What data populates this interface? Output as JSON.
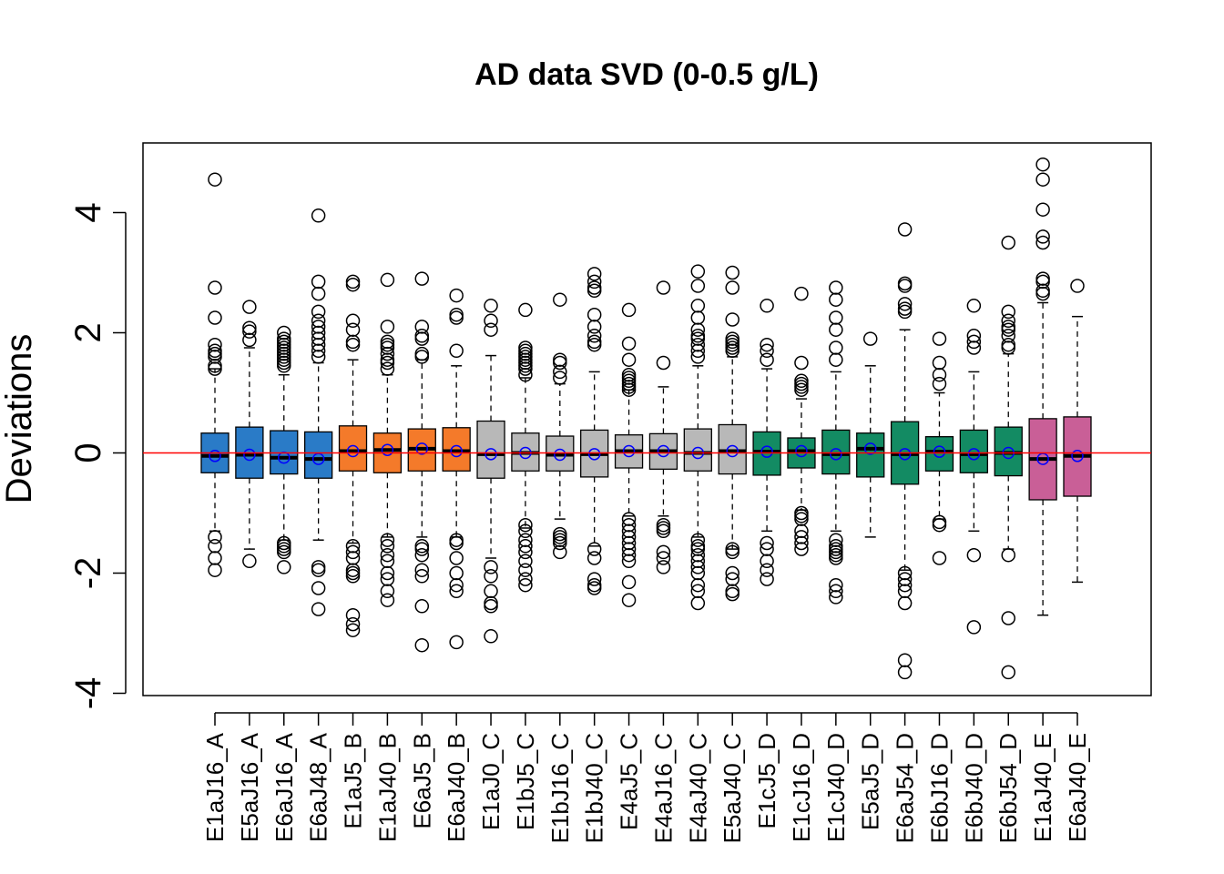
{
  "chart_data": {
    "type": "box",
    "title": "AD data SVD (0-0.5 g/L)",
    "xlabel": "",
    "ylabel": "Deviations",
    "ylim": [
      -4,
      5
    ],
    "yticks": [
      -4,
      -2,
      0,
      2,
      4
    ],
    "reference_line": {
      "y": 0,
      "color": "#ff0000"
    },
    "mean_marker_color": "#0000ff",
    "group_colors": {
      "A": "#2a7bc7",
      "B": "#f47a2a",
      "C": "#b8b8b8",
      "D": "#138b63",
      "E": "#c95f97"
    },
    "categories": [
      "E1aJ16_A",
      "E5aJ16_A",
      "E6aJ16_A",
      "E6aJ48_A",
      "E1aJ5_B",
      "E1aJ40_B",
      "E6aJ5_B",
      "E6aJ40_B",
      "E1aJ0_C",
      "E1bJ5_C",
      "E1bJ16_C",
      "E1bJ40_C",
      "E4aJ5_C",
      "E4aJ16_C",
      "E4aJ40_C",
      "E5aJ40_C",
      "E1cJ5_D",
      "E1cJ16_D",
      "E1cJ40_D",
      "E5aJ5_D",
      "E6aJ54_D",
      "E6bJ16_D",
      "E6bJ40_D",
      "E6bJ54_D",
      "E1aJ40_E",
      "E6aJ40_E"
    ],
    "boxes": [
      {
        "label": "E1aJ16_A",
        "group": "A",
        "whisker_low": -1.3,
        "q1": -0.33,
        "median": -0.05,
        "q3": 0.33,
        "whisker_high": 1.4,
        "mean": -0.05,
        "outliers": [
          4.55,
          2.75,
          2.25,
          1.8,
          1.7,
          1.65,
          1.6,
          1.45,
          1.4,
          -1.4,
          -1.55,
          -1.75,
          -1.95
        ]
      },
      {
        "label": "E5aJ16_A",
        "group": "A",
        "whisker_low": -1.6,
        "q1": -0.42,
        "median": -0.03,
        "q3": 0.43,
        "whisker_high": 1.75,
        "mean": -0.03,
        "outliers": [
          2.43,
          2.08,
          2.02,
          1.88,
          -1.8
        ]
      },
      {
        "label": "E6aJ16_A",
        "group": "A",
        "whisker_low": -1.45,
        "q1": -0.35,
        "median": -0.08,
        "q3": 0.37,
        "whisker_high": 1.3,
        "mean": -0.08,
        "outliers": [
          2.0,
          1.9,
          1.85,
          1.8,
          1.75,
          1.7,
          1.65,
          1.6,
          1.55,
          1.5,
          1.45,
          -1.5,
          -1.55,
          -1.6,
          -1.65,
          -1.9
        ]
      },
      {
        "label": "E6aJ48_A",
        "group": "A",
        "whisker_low": -1.45,
        "q1": -0.42,
        "median": -0.1,
        "q3": 0.35,
        "whisker_high": 1.5,
        "mean": -0.1,
        "outliers": [
          3.95,
          2.85,
          2.65,
          2.35,
          2.2,
          2.1,
          2.0,
          1.9,
          1.8,
          1.7,
          1.6,
          -1.9,
          -1.95,
          -2.25,
          -2.6
        ]
      },
      {
        "label": "E1aJ5_B",
        "group": "B",
        "whisker_low": -1.5,
        "q1": -0.3,
        "median": 0.03,
        "q3": 0.45,
        "whisker_high": 1.55,
        "mean": 0.03,
        "outliers": [
          2.85,
          2.8,
          2.2,
          2.05,
          1.85,
          1.8,
          -1.55,
          -1.65,
          -1.75,
          -1.95,
          -2.0,
          -2.05,
          -2.7,
          -2.85,
          -2.95
        ]
      },
      {
        "label": "E1aJ40_B",
        "group": "B",
        "whisker_low": -1.4,
        "q1": -0.33,
        "median": 0.05,
        "q3": 0.33,
        "whisker_high": 1.3,
        "mean": 0.05,
        "outliers": [
          2.88,
          2.1,
          1.85,
          1.8,
          1.75,
          1.65,
          1.55,
          1.5,
          1.4,
          -1.45,
          -1.55,
          -1.7,
          -1.8,
          -2.0,
          -2.1,
          -2.3,
          -2.45
        ]
      },
      {
        "label": "E6aJ5_B",
        "group": "B",
        "whisker_low": -1.4,
        "q1": -0.3,
        "median": 0.07,
        "q3": 0.4,
        "whisker_high": 1.55,
        "mean": 0.07,
        "outliers": [
          2.9,
          2.1,
          1.95,
          1.9,
          1.65,
          1.6,
          -1.55,
          -1.6,
          -1.7,
          -1.95,
          -2.05,
          -2.55,
          -3.2
        ]
      },
      {
        "label": "E6aJ40_B",
        "group": "B",
        "whisker_low": -1.4,
        "q1": -0.3,
        "median": 0.03,
        "q3": 0.42,
        "whisker_high": 1.45,
        "mean": 0.03,
        "outliers": [
          2.62,
          2.3,
          2.25,
          1.7,
          -1.45,
          -1.5,
          -1.75,
          -2.0,
          -2.2,
          -2.3,
          -3.15
        ]
      },
      {
        "label": "E1aJ0_C",
        "group": "C",
        "whisker_low": -1.75,
        "q1": -0.42,
        "median": -0.02,
        "q3": 0.53,
        "whisker_high": 1.62,
        "mean": -0.02,
        "outliers": [
          2.45,
          2.2,
          2.05,
          -1.9,
          -2.05,
          -2.3,
          -2.5,
          -2.55,
          -3.05
        ]
      },
      {
        "label": "E1bJ5_C",
        "group": "C",
        "whisker_low": -1.25,
        "q1": -0.3,
        "median": 0.0,
        "q3": 0.33,
        "whisker_high": 1.25,
        "mean": 0.0,
        "outliers": [
          2.38,
          1.75,
          1.7,
          1.65,
          1.6,
          1.55,
          1.5,
          1.45,
          1.4,
          1.3,
          -1.2,
          -1.3,
          -1.45,
          -1.55,
          -1.65,
          -1.8,
          -1.95,
          -2.1,
          -2.2
        ]
      },
      {
        "label": "E1bJ16_C",
        "group": "C",
        "whisker_low": -1.1,
        "q1": -0.3,
        "median": -0.03,
        "q3": 0.28,
        "whisker_high": 1.15,
        "mean": -0.03,
        "outliers": [
          2.55,
          1.55,
          1.5,
          1.35,
          1.25,
          -1.35,
          -1.4,
          -1.45,
          -1.5,
          -1.65
        ]
      },
      {
        "label": "E1bJ40_C",
        "group": "C",
        "whisker_low": -1.55,
        "q1": -0.4,
        "median": -0.02,
        "q3": 0.38,
        "whisker_high": 1.35,
        "mean": -0.02,
        "outliers": [
          2.98,
          2.85,
          2.75,
          2.7,
          2.3,
          2.1,
          1.95,
          1.85,
          1.8,
          -1.6,
          -1.75,
          -2.1,
          -2.2,
          -2.25
        ]
      },
      {
        "label": "E4aJ5_C",
        "group": "C",
        "whisker_low": -1.05,
        "q1": -0.25,
        "median": 0.03,
        "q3": 0.3,
        "whisker_high": 1.05,
        "mean": 0.03,
        "outliers": [
          2.38,
          1.82,
          1.55,
          1.3,
          1.25,
          1.2,
          1.15,
          1.1,
          1.05,
          -1.1,
          -1.2,
          -1.3,
          -1.4,
          -1.5,
          -1.6,
          -1.7,
          -1.8,
          -2.15,
          -2.45
        ]
      },
      {
        "label": "E4aJ16_C",
        "group": "C",
        "whisker_low": -1.05,
        "q1": -0.27,
        "median": 0.03,
        "q3": 0.32,
        "whisker_high": 1.1,
        "mean": 0.03,
        "outliers": [
          2.75,
          1.5,
          -1.2,
          -1.25,
          -1.3,
          -1.65,
          -1.75,
          -1.9
        ]
      },
      {
        "label": "E4aJ40_C",
        "group": "C",
        "whisker_low": -1.4,
        "q1": -0.3,
        "median": 0.0,
        "q3": 0.4,
        "whisker_high": 1.45,
        "mean": 0.0,
        "outliers": [
          3.02,
          2.78,
          2.45,
          2.25,
          2.05,
          1.95,
          1.9,
          1.8,
          1.7,
          1.6,
          -1.45,
          -1.55,
          -1.6,
          -1.7,
          -1.8,
          -1.9,
          -2.0,
          -2.2,
          -2.3,
          -2.5
        ]
      },
      {
        "label": "E5aJ40_C",
        "group": "C",
        "whisker_low": -1.6,
        "q1": -0.35,
        "median": 0.03,
        "q3": 0.47,
        "whisker_high": 1.6,
        "mean": 0.03,
        "outliers": [
          3.0,
          2.75,
          2.22,
          1.9,
          1.85,
          1.8,
          1.75,
          1.7,
          -1.6,
          -1.65,
          -2.0,
          -2.1,
          -2.3,
          -2.35
        ]
      },
      {
        "label": "E1cJ5_D",
        "group": "D",
        "whisker_low": -1.3,
        "q1": -0.37,
        "median": 0.02,
        "q3": 0.35,
        "whisker_high": 1.4,
        "mean": 0.02,
        "outliers": [
          2.45,
          1.8,
          1.7,
          1.55,
          -1.5,
          -1.6,
          -1.8,
          -1.95,
          -2.1
        ]
      },
      {
        "label": "E1cJ16_D",
        "group": "D",
        "whisker_low": -0.95,
        "q1": -0.25,
        "median": 0.03,
        "q3": 0.25,
        "whisker_high": 0.9,
        "mean": 0.03,
        "outliers": [
          2.65,
          1.5,
          1.2,
          1.15,
          1.1,
          1.05,
          -1.0,
          -1.05,
          -1.1,
          -1.3,
          -1.4,
          -1.5,
          -1.6
        ]
      },
      {
        "label": "E1cJ40_D",
        "group": "D",
        "whisker_low": -1.3,
        "q1": -0.35,
        "median": -0.02,
        "q3": 0.38,
        "whisker_high": 1.35,
        "mean": -0.02,
        "outliers": [
          2.75,
          2.55,
          2.25,
          2.05,
          1.75,
          1.55,
          -1.45,
          -1.55,
          -1.6,
          -1.65,
          -1.7,
          -1.75,
          -2.2,
          -2.3,
          -2.4
        ]
      },
      {
        "label": "E5aJ5_D",
        "group": "D",
        "whisker_low": -1.4,
        "q1": -0.4,
        "median": 0.07,
        "q3": 0.33,
        "whisker_high": 1.45,
        "mean": 0.07,
        "outliers": [
          1.9
        ]
      },
      {
        "label": "E6aJ54_D",
        "group": "D",
        "whisker_low": -1.95,
        "q1": -0.52,
        "median": -0.02,
        "q3": 0.52,
        "whisker_high": 2.05,
        "mean": -0.02,
        "outliers": [
          3.72,
          2.82,
          2.78,
          2.48,
          2.4,
          2.35,
          -2.0,
          -2.1,
          -2.2,
          -2.3,
          -2.5,
          -3.45,
          -3.65
        ]
      },
      {
        "label": "E6bJ16_D",
        "group": "D",
        "whisker_low": -1.1,
        "q1": -0.3,
        "median": 0.02,
        "q3": 0.27,
        "whisker_high": 1.0,
        "mean": 0.02,
        "outliers": [
          1.9,
          1.5,
          1.3,
          1.15,
          -1.15,
          -1.2,
          -1.75
        ]
      },
      {
        "label": "E6bJ40_D",
        "group": "D",
        "whisker_low": -1.3,
        "q1": -0.33,
        "median": -0.02,
        "q3": 0.38,
        "whisker_high": 1.35,
        "mean": -0.02,
        "outliers": [
          2.45,
          1.95,
          1.85,
          1.75,
          -1.7,
          -2.9
        ]
      },
      {
        "label": "E6bJ54_D",
        "group": "D",
        "whisker_low": -1.6,
        "q1": -0.38,
        "median": 0.0,
        "q3": 0.43,
        "whisker_high": 1.65,
        "mean": 0.0,
        "outliers": [
          3.5,
          2.35,
          2.2,
          2.1,
          2.05,
          1.95,
          1.8,
          1.75,
          -1.7,
          -2.75,
          -3.65
        ]
      },
      {
        "label": "E1aJ40_E",
        "group": "E",
        "whisker_low": -2.7,
        "q1": -0.78,
        "median": -0.1,
        "q3": 0.57,
        "whisker_high": 2.5,
        "mean": -0.1,
        "outliers": [
          4.8,
          4.55,
          4.05,
          3.6,
          3.5,
          2.9,
          2.85,
          2.7,
          2.65
        ]
      },
      {
        "label": "E6aJ40_E",
        "group": "E",
        "whisker_low": -2.15,
        "q1": -0.72,
        "median": -0.05,
        "q3": 0.6,
        "whisker_high": 2.27,
        "mean": -0.05,
        "outliers": [
          2.78
        ]
      }
    ]
  }
}
